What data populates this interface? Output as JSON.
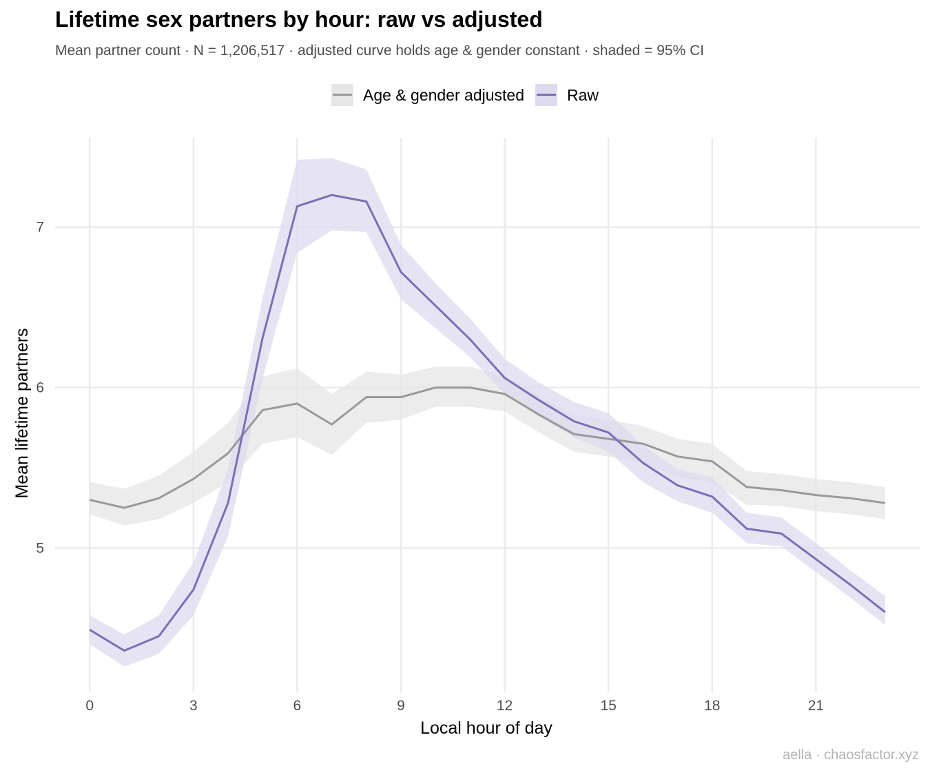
{
  "title": "Lifetime sex partners by hour: raw vs adjusted",
  "subtitle": "Mean partner count · N = 1,206,517 · adjusted curve holds age & gender constant · shaded = 95% CI",
  "caption": "aella · chaosfactor.xyz",
  "legend": {
    "items": [
      {
        "label": "Age & gender adjusted",
        "line_color": "#999999",
        "fill_color": "#e6e6e6"
      },
      {
        "label": "Raw",
        "line_color": "#7b6fb5",
        "fill_color": "#dddaee"
      }
    ]
  },
  "chart_data": {
    "type": "line",
    "xlabel": "Local hour of day",
    "ylabel": "Mean lifetime partners",
    "xlim": [
      -1,
      24
    ],
    "ylim": [
      4.1,
      7.6
    ],
    "x_ticks": [
      "0",
      "3",
      "6",
      "9",
      "12",
      "15",
      "18",
      "21"
    ],
    "y_ticks": [
      "5",
      "6",
      "7"
    ],
    "grid": true,
    "legend_position": "top",
    "x": [
      0,
      1,
      2,
      3,
      4,
      5,
      6,
      7,
      8,
      9,
      10,
      11,
      12,
      13,
      14,
      15,
      16,
      17,
      18,
      19,
      20,
      21,
      22,
      23
    ],
    "series": [
      {
        "name": "Age & gender adjusted",
        "color": "#999999",
        "band_color": "#e6e6e6",
        "values": [
          5.3,
          5.25,
          5.31,
          5.43,
          5.59,
          5.86,
          5.9,
          5.77,
          5.94,
          5.94,
          6.0,
          6.0,
          5.96,
          5.83,
          5.71,
          5.68,
          5.65,
          5.57,
          5.54,
          5.38,
          5.36,
          5.33,
          5.31,
          5.28
        ],
        "lower": [
          5.21,
          5.14,
          5.18,
          5.28,
          5.41,
          5.65,
          5.69,
          5.58,
          5.78,
          5.8,
          5.88,
          5.88,
          5.85,
          5.72,
          5.6,
          5.57,
          5.53,
          5.44,
          5.41,
          5.27,
          5.26,
          5.23,
          5.21,
          5.18
        ],
        "upper": [
          5.41,
          5.37,
          5.45,
          5.6,
          5.78,
          6.07,
          6.12,
          5.96,
          6.1,
          6.08,
          6.13,
          6.13,
          6.07,
          5.95,
          5.83,
          5.8,
          5.76,
          5.68,
          5.65,
          5.48,
          5.46,
          5.43,
          5.41,
          5.38
        ]
      },
      {
        "name": "Raw",
        "color": "#7b6fb5",
        "band_color": "#dddaee",
        "values": [
          4.49,
          4.36,
          4.45,
          4.74,
          5.28,
          6.31,
          7.13,
          7.2,
          7.16,
          6.72,
          6.51,
          6.3,
          6.06,
          5.92,
          5.79,
          5.72,
          5.53,
          5.39,
          5.32,
          5.12,
          5.09,
          4.93,
          4.77,
          4.6
        ],
        "lower": [
          4.4,
          4.26,
          4.34,
          4.58,
          5.07,
          6.06,
          6.84,
          6.98,
          6.97,
          6.55,
          6.37,
          6.19,
          5.96,
          5.82,
          5.69,
          5.6,
          5.41,
          5.29,
          5.22,
          5.03,
          5.01,
          4.85,
          4.69,
          4.52
        ],
        "upper": [
          4.58,
          4.46,
          4.58,
          4.91,
          5.49,
          6.56,
          7.42,
          7.43,
          7.36,
          6.89,
          6.65,
          6.43,
          6.18,
          6.03,
          5.91,
          5.84,
          5.64,
          5.49,
          5.44,
          5.22,
          5.19,
          5.03,
          4.86,
          4.7
        ]
      }
    ]
  }
}
